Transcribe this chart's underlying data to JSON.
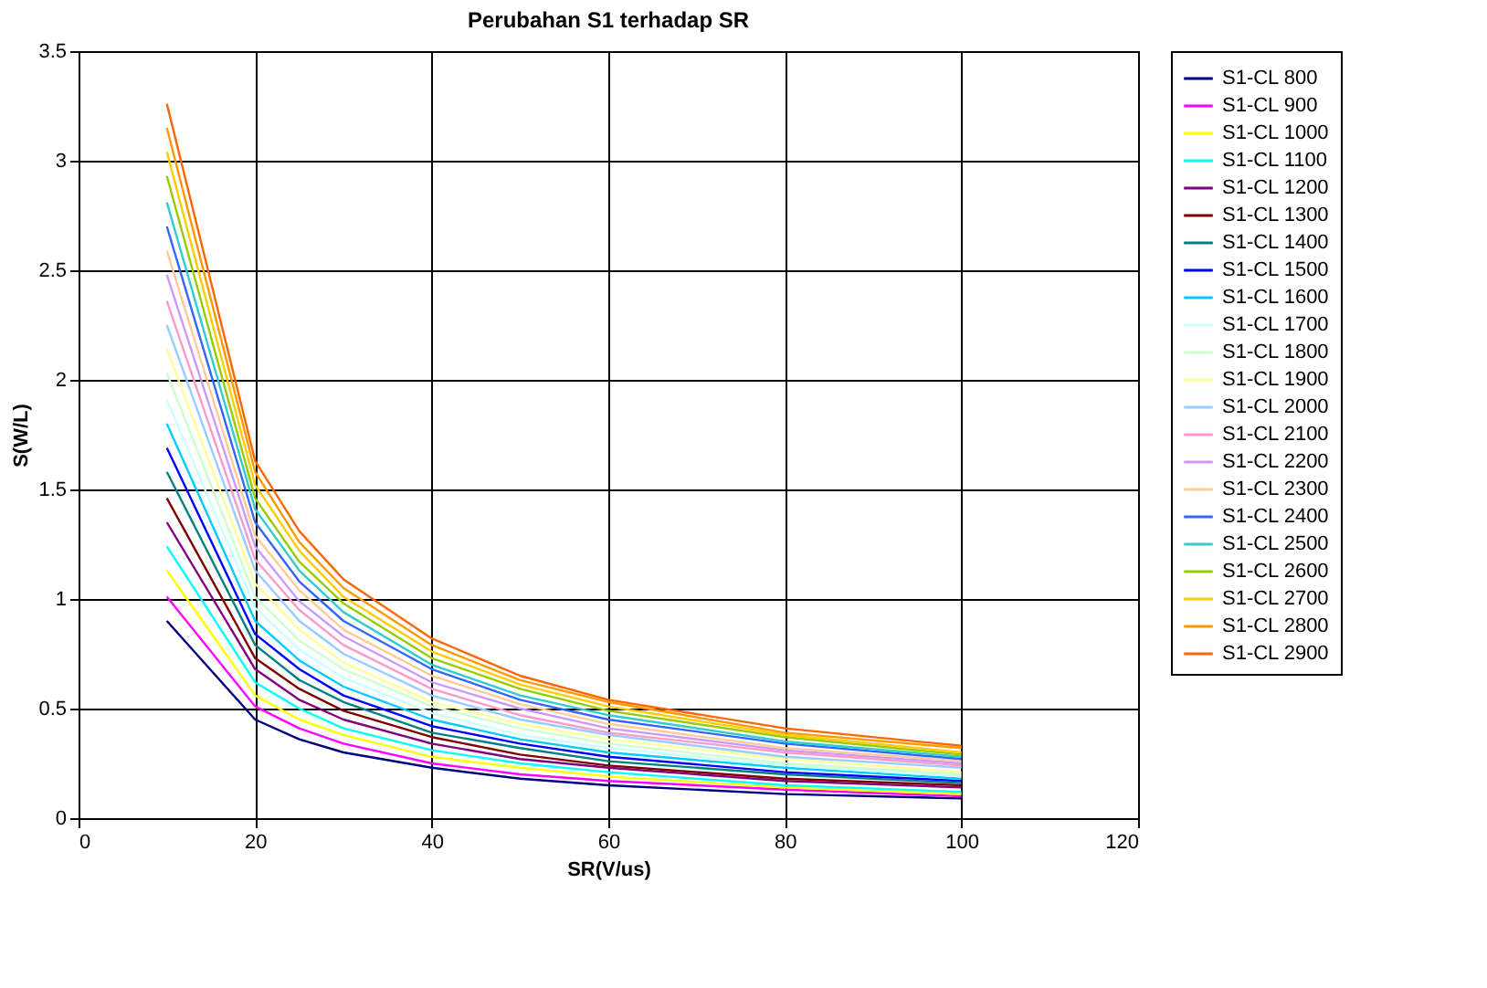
{
  "chart_data": {
    "type": "line",
    "title": "Perubahan S1 terhadap SR",
    "xlabel": "SR(V/us)",
    "ylabel": "S(W/L)",
    "x": [
      10,
      20,
      25,
      30,
      40,
      50,
      60,
      80,
      100
    ],
    "xlim": [
      0,
      120
    ],
    "xticks": [
      0,
      20,
      40,
      60,
      80,
      100,
      120
    ],
    "ylim": [
      0,
      3.5
    ],
    "yticks": [
      0,
      0.5,
      1,
      1.5,
      2,
      2.5,
      3,
      3.5
    ],
    "grid": true,
    "legend": "right",
    "marker": "none",
    "line_style": "solid",
    "series": [
      {
        "name": "S1-CL 800",
        "color": "#000080",
        "values": [
          0.9,
          0.45,
          0.36,
          0.3,
          0.23,
          0.18,
          0.15,
          0.11,
          0.09
        ]
      },
      {
        "name": "S1-CL 900",
        "color": "#ff00ff",
        "values": [
          1.01,
          0.51,
          0.41,
          0.34,
          0.25,
          0.2,
          0.17,
          0.13,
          0.1
        ]
      },
      {
        "name": "S1-CL 1000",
        "color": "#ffff00",
        "values": [
          1.13,
          0.56,
          0.45,
          0.38,
          0.28,
          0.23,
          0.19,
          0.14,
          0.11
        ]
      },
      {
        "name": "S1-CL 1100",
        "color": "#00ffff",
        "values": [
          1.24,
          0.62,
          0.5,
          0.41,
          0.31,
          0.25,
          0.21,
          0.15,
          0.12
        ]
      },
      {
        "name": "S1-CL 1200",
        "color": "#800080",
        "values": [
          1.35,
          0.68,
          0.54,
          0.45,
          0.34,
          0.27,
          0.23,
          0.17,
          0.14
        ]
      },
      {
        "name": "S1-CL 1300",
        "color": "#800000",
        "values": [
          1.46,
          0.73,
          0.59,
          0.49,
          0.37,
          0.29,
          0.24,
          0.18,
          0.15
        ]
      },
      {
        "name": "S1-CL 1400",
        "color": "#008080",
        "values": [
          1.58,
          0.79,
          0.63,
          0.53,
          0.39,
          0.32,
          0.26,
          0.2,
          0.16
        ]
      },
      {
        "name": "S1-CL 1500",
        "color": "#0000ff",
        "values": [
          1.69,
          0.84,
          0.68,
          0.56,
          0.42,
          0.34,
          0.28,
          0.21,
          0.17
        ]
      },
      {
        "name": "S1-CL 1600",
        "color": "#00ccff",
        "values": [
          1.8,
          0.9,
          0.72,
          0.6,
          0.45,
          0.36,
          0.3,
          0.23,
          0.18
        ]
      },
      {
        "name": "S1-CL 1700",
        "color": "#ccffff",
        "values": [
          1.91,
          0.96,
          0.77,
          0.64,
          0.48,
          0.38,
          0.32,
          0.24,
          0.19
        ]
      },
      {
        "name": "S1-CL 1800",
        "color": "#ccffcc",
        "values": [
          2.03,
          1.01,
          0.81,
          0.68,
          0.51,
          0.41,
          0.34,
          0.25,
          0.2
        ]
      },
      {
        "name": "S1-CL 1900",
        "color": "#ffff99",
        "values": [
          2.14,
          1.07,
          0.86,
          0.71,
          0.53,
          0.43,
          0.36,
          0.27,
          0.21
        ]
      },
      {
        "name": "S1-CL 2000",
        "color": "#99ccff",
        "values": [
          2.25,
          1.13,
          0.9,
          0.75,
          0.56,
          0.45,
          0.38,
          0.28,
          0.23
        ]
      },
      {
        "name": "S1-CL 2100",
        "color": "#ff99cc",
        "values": [
          2.36,
          1.18,
          0.95,
          0.79,
          0.59,
          0.47,
          0.39,
          0.3,
          0.24
        ]
      },
      {
        "name": "S1-CL 2200",
        "color": "#cc99ff",
        "values": [
          2.48,
          1.24,
          0.99,
          0.83,
          0.62,
          0.5,
          0.41,
          0.31,
          0.25
        ]
      },
      {
        "name": "S1-CL 2300",
        "color": "#ffcc99",
        "values": [
          2.59,
          1.29,
          1.04,
          0.86,
          0.65,
          0.52,
          0.43,
          0.32,
          0.26
        ]
      },
      {
        "name": "S1-CL 2400",
        "color": "#3366ff",
        "values": [
          2.7,
          1.35,
          1.08,
          0.9,
          0.68,
          0.54,
          0.45,
          0.34,
          0.27
        ]
      },
      {
        "name": "S1-CL 2500",
        "color": "#33cccc",
        "values": [
          2.81,
          1.41,
          1.13,
          0.94,
          0.7,
          0.56,
          0.47,
          0.35,
          0.28
        ]
      },
      {
        "name": "S1-CL 2600",
        "color": "#99cc00",
        "values": [
          2.93,
          1.46,
          1.17,
          0.98,
          0.73,
          0.59,
          0.49,
          0.37,
          0.29
        ]
      },
      {
        "name": "S1-CL 2700",
        "color": "#ffcc00",
        "values": [
          3.04,
          1.52,
          1.22,
          1.01,
          0.76,
          0.61,
          0.51,
          0.38,
          0.3
        ]
      },
      {
        "name": "S1-CL 2800",
        "color": "#ff9900",
        "values": [
          3.15,
          1.58,
          1.26,
          1.05,
          0.79,
          0.63,
          0.53,
          0.39,
          0.32
        ]
      },
      {
        "name": "S1-CL 2900",
        "color": "#ff6600",
        "values": [
          3.26,
          1.63,
          1.31,
          1.09,
          0.82,
          0.65,
          0.54,
          0.41,
          0.33
        ]
      }
    ]
  }
}
